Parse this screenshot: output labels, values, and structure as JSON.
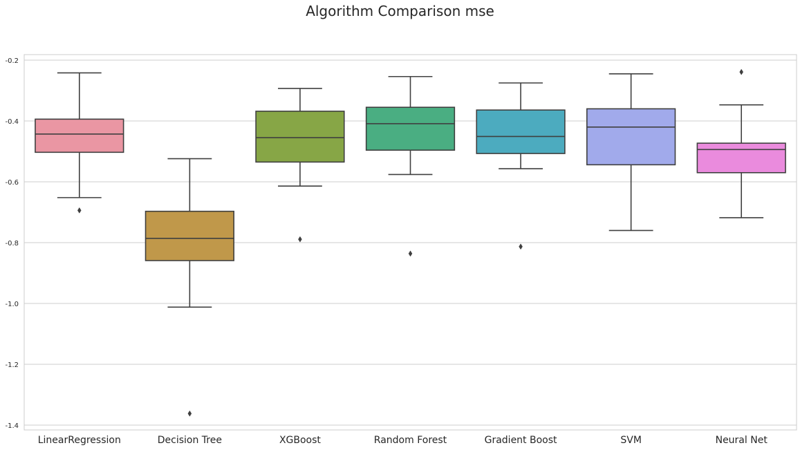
{
  "chart_data": {
    "type": "box",
    "title": "Algorithm Comparison mse",
    "xlabel": "",
    "ylabel": "",
    "ylim": [
      -1.42,
      -0.18
    ],
    "yticks": [
      -0.2,
      -0.4,
      -0.6,
      -0.8,
      -1.0,
      -1.2,
      -1.4
    ],
    "ytick_labels": [
      "-0.2",
      "-0.4",
      "-0.6",
      "-0.8",
      "-1.0",
      "-1.2",
      "-1.4"
    ],
    "grid": "horizontal",
    "categories": [
      "LinearRegression",
      "Decision Tree",
      "XGBoost",
      "Random Forest",
      "Gradient Boost",
      "SVM",
      "Neural Net"
    ],
    "boxes": [
      {
        "name": "LinearRegression",
        "whisker_low": -0.652,
        "q1": -0.503,
        "median": -0.443,
        "q3": -0.394,
        "whisker_high": -0.242,
        "outliers": [
          -0.694
        ],
        "color": "#ea96a3"
      },
      {
        "name": "Decision Tree",
        "whisker_low": -1.012,
        "q1": -0.859,
        "median": -0.786,
        "q3": -0.697,
        "whisker_high": -0.524,
        "outliers": [
          -1.362
        ],
        "color": "#c0984a"
      },
      {
        "name": "XGBoost",
        "whisker_low": -0.614,
        "q1": -0.535,
        "median": -0.455,
        "q3": -0.368,
        "whisker_high": -0.293,
        "outliers": [
          -0.789
        ],
        "color": "#87a646"
      },
      {
        "name": "Random Forest",
        "whisker_low": -0.576,
        "q1": -0.496,
        "median": -0.409,
        "q3": -0.355,
        "whisker_high": -0.254,
        "outliers": [
          -0.836
        ],
        "color": "#4aae82"
      },
      {
        "name": "Gradient Boost",
        "whisker_low": -0.557,
        "q1": -0.507,
        "median": -0.451,
        "q3": -0.364,
        "whisker_high": -0.275,
        "outliers": [
          -0.813
        ],
        "color": "#4cabbf"
      },
      {
        "name": "SVM",
        "whisker_low": -0.76,
        "q1": -0.544,
        "median": -0.42,
        "q3": -0.36,
        "whisker_high": -0.245,
        "outliers": [],
        "color": "#a1aaeb"
      },
      {
        "name": "Neural Net",
        "whisker_low": -0.718,
        "q1": -0.57,
        "median": -0.494,
        "q3": -0.473,
        "whisker_high": -0.347,
        "outliers": [
          -0.239
        ],
        "color": "#ea8bdd"
      }
    ]
  }
}
